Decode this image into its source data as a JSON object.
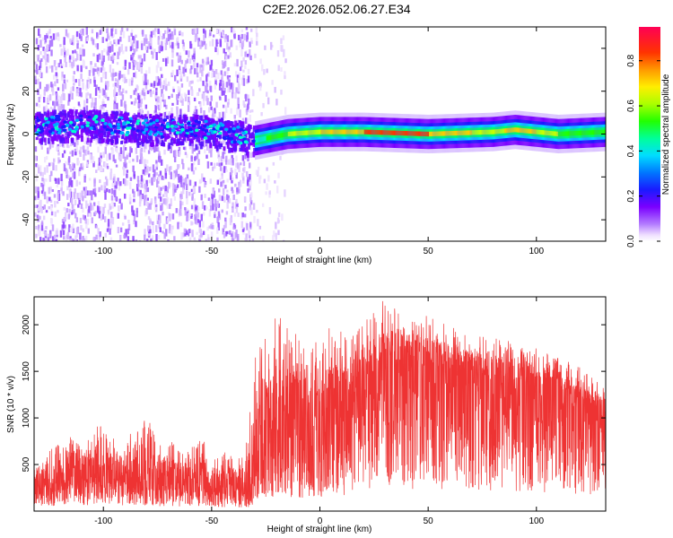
{
  "figure_title": "C2E2.2026.052.06.27.E34",
  "colors": {
    "snr_line": "#ee3333",
    "frame": "#000000",
    "ridge_ramp": [
      "#8800ff",
      "#3355ff",
      "#00ddff",
      "#00ff44",
      "#ffff00",
      "#ff8800",
      "#ff0033"
    ]
  },
  "chart_data": [
    {
      "type": "heatmap",
      "name": "spectrogram",
      "xlabel": "Height of straight line (km)",
      "ylabel": "Frequency (Hz)",
      "xlim": [
        -132,
        132
      ],
      "ylim": [
        -50,
        50
      ],
      "xticks": [
        -100,
        -50,
        0,
        50,
        100
      ],
      "yticks": [
        -40,
        -20,
        0,
        20,
        40
      ],
      "grid": false,
      "description_series": [
        {
          "name": "ridge",
          "x": [
            -132,
            -110,
            -80,
            -50,
            -35,
            -30,
            -25,
            -15,
            0,
            20,
            50,
            80,
            90,
            100,
            110,
            132
          ],
          "freq_hz": [
            4,
            5,
            3,
            2,
            -1,
            -3,
            -2,
            0,
            1,
            1,
            0,
            1,
            2,
            1,
            0,
            1
          ],
          "amplitude": [
            0.3,
            0.5,
            0.35,
            0.4,
            0.3,
            0.5,
            0.6,
            0.7,
            0.8,
            0.9,
            0.9,
            0.75,
            0.85,
            0.8,
            0.7,
            0.6
          ]
        },
        {
          "name": "noise_band",
          "x_range": [
            -132,
            -30
          ],
          "freq_range": [
            -50,
            50
          ],
          "amplitude_approx": 0.1
        }
      ]
    },
    {
      "type": "bar",
      "name": "colorbar",
      "label": "Normalized spectral amplitude",
      "range": [
        0,
        0.95
      ],
      "ticks": [
        "0.0",
        "0.2",
        "0.4",
        "0.6",
        "0.8"
      ]
    },
    {
      "type": "line",
      "name": "snr",
      "xlabel": "Height of straight line (km)",
      "ylabel": "SNR (10 * v/v)",
      "xlim": [
        -132,
        132
      ],
      "ylim": [
        0,
        2300
      ],
      "xticks": [
        -100,
        -50,
        0,
        50,
        100
      ],
      "yticks": [
        500,
        1000,
        1500,
        2000
      ],
      "grid": false,
      "series": [
        {
          "name": "SNR",
          "x": [
            -132,
            -125,
            -115,
            -110,
            -105,
            -100,
            -95,
            -90,
            -85,
            -80,
            -75,
            -70,
            -65,
            -60,
            -55,
            -50,
            -45,
            -40,
            -35,
            -32,
            -30,
            -28,
            -25,
            -20,
            -15,
            -10,
            -5,
            0,
            5,
            10,
            15,
            20,
            25,
            30,
            35,
            40,
            50,
            60,
            70,
            80,
            90,
            100,
            110,
            120,
            125,
            130,
            132
          ],
          "y": [
            300,
            330,
            380,
            340,
            430,
            360,
            350,
            330,
            380,
            410,
            330,
            360,
            310,
            320,
            360,
            280,
            290,
            270,
            260,
            300,
            420,
            850,
            880,
            950,
            1050,
            920,
            900,
            1000,
            1050,
            1100,
            1200,
            1350,
            1480,
            1560,
            1600,
            1580,
            1550,
            1500,
            1480,
            1440,
            1400,
            1330,
            1280,
            1200,
            1150,
            1100,
            1050
          ],
          "peak": [
            550,
            680,
            900,
            700,
            1080,
            850,
            820,
            760,
            950,
            1050,
            720,
            800,
            650,
            700,
            820,
            620,
            650,
            600,
            580,
            1200,
            1750,
            1800,
            1900,
            2150,
            2000,
            1950,
            1800,
            1900,
            2000,
            1950,
            1900,
            2050,
            2150,
            2300,
            2200,
            2100,
            2100,
            2000,
            1900,
            1850,
            1850,
            1750,
            1650,
            1550,
            1450,
            1350,
            1300
          ]
        }
      ]
    }
  ]
}
